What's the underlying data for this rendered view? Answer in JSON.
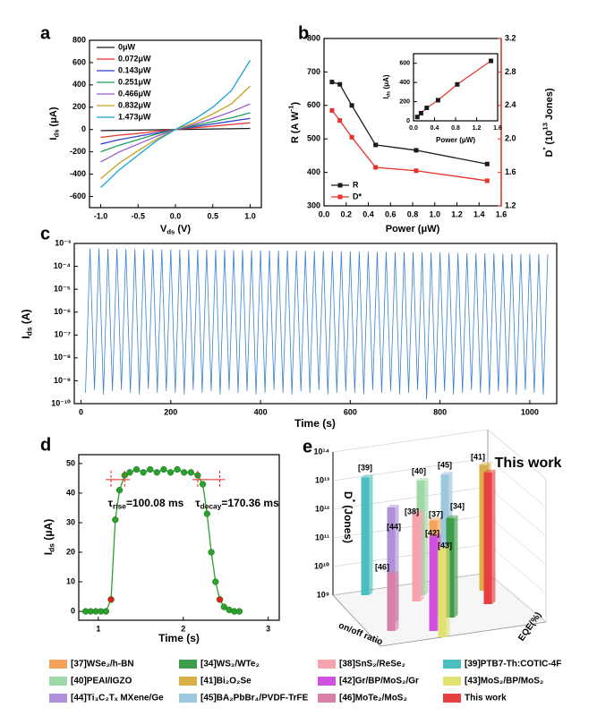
{
  "chart_data": [
    {
      "type": "line",
      "panel_label": "a",
      "legend": "upper left",
      "x_label": [
        {
          "t": "V"
        },
        {
          "sub": "ds"
        },
        {
          "t": " (V)"
        }
      ],
      "y_label": [
        {
          "t": "I"
        },
        {
          "sub": "ds"
        },
        {
          "t": " (μA)"
        }
      ],
      "x": [
        -1,
        -0.75,
        -0.5,
        -0.25,
        0,
        0.25,
        0.5,
        0.75,
        1
      ],
      "xlim": [
        -1.15,
        1.15
      ],
      "xticks": [
        {
          "value": -1,
          "label": "-1.0"
        },
        -0.5,
        {
          "value": 0,
          "label": "0.0"
        },
        0.5,
        {
          "value": 1,
          "label": "1.0"
        }
      ],
      "ylim": [
        -700,
        800
      ],
      "yticks": [
        -600,
        -400,
        -200,
        0,
        200,
        400,
        600,
        800
      ],
      "series": [
        {
          "name": "0μW",
          "color": "#1a1a1a",
          "values": [
            -10,
            -7,
            -5,
            -2,
            0,
            2,
            5,
            7,
            10
          ]
        },
        {
          "name": "0.072μW",
          "color": "#e8312a",
          "values": [
            -70,
            -50,
            -35,
            -15,
            0,
            15,
            30,
            45,
            60
          ]
        },
        {
          "name": "0.143μW",
          "color": "#2f3fd0",
          "values": [
            -130,
            -90,
            -60,
            -30,
            0,
            25,
            50,
            75,
            100
          ]
        },
        {
          "name": "0.251μW",
          "color": "#1f9f5a",
          "values": [
            -200,
            -140,
            -90,
            -40,
            0,
            35,
            70,
            105,
            150
          ]
        },
        {
          "name": "0.466μW",
          "color": "#9b59d0",
          "values": [
            -290,
            -200,
            -130,
            -60,
            0,
            45,
            100,
            160,
            230
          ]
        },
        {
          "name": "0.832μW",
          "color": "#c8a020",
          "values": [
            -440,
            -300,
            -190,
            -85,
            0,
            60,
            140,
            230,
            390
          ]
        },
        {
          "name": "1.473μW",
          "color": "#17a2d8",
          "values": [
            -520,
            -360,
            -230,
            -100,
            0,
            90,
            200,
            350,
            620
          ]
        }
      ]
    },
    {
      "type": "line",
      "panel_label": "b",
      "legend": "lower left",
      "marker": "square",
      "x_label": [
        {
          "t": "Power (μW)"
        }
      ],
      "y_label": [
        {
          "t": "R"
        },
        {
          "t": " (A W"
        },
        {
          "sup": "-1"
        },
        {
          "t": ")"
        }
      ],
      "y2_label": [
        {
          "t": "D"
        },
        {
          "sup": "*"
        },
        {
          "t": " (10"
        },
        {
          "sup": "13"
        },
        {
          "t": " Jones)"
        }
      ],
      "x": [
        0.072,
        0.143,
        0.251,
        0.466,
        0.832,
        1.473
      ],
      "xlim": [
        0,
        1.6
      ],
      "xticks": [
        {
          "value": 0,
          "label": "0.0"
        },
        0.2,
        0.4,
        0.6,
        0.8,
        {
          "value": 1,
          "label": "1.0"
        },
        1.2,
        1.4,
        1.6
      ],
      "ylim": [
        300,
        800
      ],
      "yticks": [
        300,
        400,
        500,
        600,
        700,
        800
      ],
      "y2lim": [
        1.2,
        3.2
      ],
      "y2ticks": [
        1.2,
        1.6,
        {
          "value": 2,
          "label": "2.0"
        },
        2.4,
        2.8,
        3.2
      ],
      "series": [
        {
          "name": "R",
          "color": "#1a1a1a",
          "values": [
            670,
            663,
            600,
            482,
            466,
            425
          ]
        },
        {
          "name": "D*",
          "color": "#e8312a",
          "axis": "y2",
          "values": [
            2.34,
            2.22,
            2.02,
            1.66,
            1.62,
            1.5
          ]
        }
      ]
    },
    {
      "type": "line",
      "marker": "square",
      "x_label": [
        {
          "t": "Power (μW)"
        }
      ],
      "y_label": [
        {
          "t": "I"
        },
        {
          "sub": "ds"
        },
        {
          "t": " (μA)"
        }
      ],
      "x": [
        0.072,
        0.143,
        0.251,
        0.466,
        0.832,
        1.473
      ],
      "xlim": [
        0,
        1.6
      ],
      "xticks": [
        {
          "value": 0,
          "label": "0.0"
        },
        0.4,
        0.8,
        1.2,
        1.6
      ],
      "ylim": [
        0,
        700
      ],
      "yticks": [
        0,
        200,
        400,
        600
      ],
      "series": [
        {
          "color": "#e8312a",
          "marker_color": "#1a1a1a",
          "values": [
            40,
            80,
            135,
            215,
            380,
            625
          ]
        }
      ]
    },
    {
      "type": "line",
      "panel_label": "c",
      "y_scale": "log",
      "x_label": [
        {
          "t": "Time (s)"
        }
      ],
      "y_label": [
        {
          "t": "I"
        },
        {
          "sub": "ds"
        },
        {
          "t": " (A)"
        }
      ],
      "xlim": [
        -15,
        1060
      ],
      "xticks": [
        0,
        200,
        400,
        600,
        800,
        1000
      ],
      "ylim": [
        1e-10,
        0.001
      ],
      "yticks": [
        {
          "value": 1e-10,
          "label": "10⁻¹⁰"
        },
        {
          "value": 1e-09,
          "label": "10⁻⁹"
        },
        {
          "value": 1e-08,
          "label": "10⁻⁸"
        },
        {
          "value": 1e-07,
          "label": "10⁻⁷"
        },
        {
          "value": 1e-06,
          "label": "10⁻⁶"
        },
        {
          "value": 1e-05,
          "label": "10⁻⁵"
        },
        {
          "value": 0.0001,
          "label": "10⁻⁴"
        },
        {
          "value": 0.001,
          "label": "10⁻³"
        }
      ],
      "x": [
        10,
        20,
        30,
        40,
        50,
        60,
        70,
        80,
        90,
        100,
        110,
        120,
        130,
        140,
        150,
        160,
        170,
        180,
        190,
        200,
        210,
        220,
        230,
        240,
        250,
        260,
        270,
        280,
        290,
        300,
        310,
        320,
        330,
        340,
        350,
        360,
        370,
        380,
        390,
        400,
        410,
        420,
        430,
        440,
        450,
        460,
        470,
        480,
        490,
        500,
        510,
        520,
        530,
        540,
        550,
        560,
        570,
        580,
        590,
        600,
        610,
        620,
        630,
        640,
        650,
        660,
        670,
        680,
        690,
        700,
        710,
        720,
        730,
        740,
        750,
        760,
        770,
        780,
        790,
        800,
        810,
        820,
        830,
        840,
        850,
        860,
        870,
        880,
        890,
        900,
        910,
        920,
        930,
        940,
        950,
        960,
        970,
        980,
        990,
        1000,
        1010,
        1020,
        1030,
        1040
      ],
      "series": [
        {
          "color": "#3a7fd0",
          "values": [
            3e-10,
            0.0006,
            4e-10,
            0.0006,
            2.5e-10,
            0.00058,
            3.5e-10,
            0.00058,
            4e-10,
            0.00057,
            3e-10,
            0.00057,
            2.5e-10,
            0.00056,
            4.5e-10,
            0.00056,
            3e-10,
            0.00055,
            3.5e-10,
            0.00055,
            3e-10,
            0.00054,
            2.5e-10,
            0.00054,
            4e-10,
            0.00053,
            3e-10,
            0.00053,
            3.5e-10,
            0.00052,
            2.5e-10,
            0.00052,
            4e-10,
            0.00051,
            3e-10,
            0.00051,
            3.5e-10,
            0.0005,
            2.5e-10,
            0.0005,
            3e-10,
            0.00049,
            4e-10,
            0.00049,
            3e-10,
            0.00048,
            2.5e-10,
            0.00048,
            3.5e-10,
            0.00047,
            3e-10,
            0.00047,
            4e-10,
            0.00046,
            2.5e-10,
            0.00046,
            3e-10,
            0.00045,
            3.5e-10,
            0.00045,
            3e-10,
            0.00044,
            2.5e-10,
            0.00044,
            4e-10,
            0.00043,
            3e-10,
            0.00043,
            3.5e-10,
            0.00042,
            2.5e-10,
            0.00042,
            3e-10,
            0.00041,
            4e-10,
            0.00041,
            1.5e-10,
            0.0004,
            3e-10,
            0.0004,
            3.5e-10,
            0.00039,
            2.5e-10,
            0.00039,
            3e-10,
            0.00038,
            4e-10,
            0.00038,
            3e-10,
            0.00037,
            2.5e-10,
            0.00037,
            3.5e-10,
            0.00036,
            3e-10,
            0.00036,
            2.5e-10,
            0.00035,
            4e-10,
            0.00035,
            3e-10,
            0.00035,
            2.5e-10,
            0.00034
          ]
        }
      ]
    },
    {
      "type": "line",
      "panel_label": "d",
      "marker": "circle",
      "x_label": [
        {
          "t": "Time (s)"
        }
      ],
      "y_label": [
        {
          "t": "I"
        },
        {
          "sub": "ds"
        },
        {
          "t": " (μA)"
        }
      ],
      "annotations": [
        [
          {
            "t": "τ"
          },
          {
            "sub": "rise"
          },
          {
            "t": "=100.08 ms"
          }
        ],
        [
          {
            "t": "τ"
          },
          {
            "sub": "decay"
          },
          {
            "t": "=170.36 ms"
          }
        ]
      ],
      "annotation_color": "#e0201b",
      "xlim": [
        0.77,
        3.13
      ],
      "xticks": [
        1,
        2,
        3
      ],
      "ylim": [
        -3,
        53
      ],
      "yticks": [
        0,
        10,
        20,
        30,
        40,
        50
      ],
      "x": [
        0.85,
        0.91,
        0.97,
        1.03,
        1.09,
        1.15,
        1.2,
        1.25,
        1.31,
        1.37,
        1.45,
        1.53,
        1.61,
        1.69,
        1.77,
        1.85,
        1.93,
        2.01,
        2.09,
        2.17,
        2.23,
        2.28,
        2.33,
        2.38,
        2.43,
        2.48,
        2.54,
        2.6,
        2.66
      ],
      "series": [
        {
          "color": "#2ca02c",
          "values": [
            0,
            0,
            0,
            0,
            0,
            4,
            31,
            41,
            46,
            47,
            48,
            47,
            48,
            47,
            48,
            47,
            48,
            47,
            47,
            46,
            43,
            33,
            20,
            10,
            4,
            1.5,
            0.5,
            0,
            0
          ]
        },
        {
          "color": "#e0201b",
          "line": false,
          "values": [
            null,
            null,
            null,
            null,
            null,
            4,
            null,
            null,
            null,
            null,
            null,
            null,
            null,
            null,
            null,
            null,
            null,
            null,
            null,
            null,
            null,
            null,
            null,
            null,
            4,
            null,
            null,
            null,
            null
          ]
        }
      ]
    },
    {
      "type": "bar3d",
      "panel_label": "e",
      "y_scale": "log",
      "z_label": [
        {
          "t": "D"
        },
        {
          "sup": "*"
        },
        {
          "t": " (Jones)"
        }
      ],
      "x_label": [
        {
          "t": "on/off ratio"
        }
      ],
      "y_label": [
        {
          "t": "EQE(%)"
        }
      ],
      "ylim": [
        1000000000.0,
        100000000000000.0
      ],
      "yticks": [
        {
          "value": 1000000000.0,
          "label": "10⁹"
        },
        {
          "value": 10000000000.0,
          "label": "10¹⁰"
        },
        {
          "value": 100000000000.0,
          "label": "10¹¹"
        },
        {
          "value": 1000000000000.0,
          "label": "10¹²"
        },
        {
          "value": 10000000000000.0,
          "label": "10¹³"
        },
        {
          "value": 100000000000000.0,
          "label": "10¹⁴"
        }
      ],
      "series": [
        {
          "name": "[37]WSe₂/h-BN",
          "label": "[37]",
          "color": "#f4a25a",
          "value": 2500000000000.0
        },
        {
          "name": "[34]WS₂/WTe₂",
          "label": "[34]",
          "color": "#3f9c4a",
          "value": 3000000000000.0
        },
        {
          "name": "[38]SnS₂/ReSe₂",
          "label": "[38]",
          "color": "#f6a5b0",
          "value": 1300000000000.0
        },
        {
          "name": "[39]PTB7-Th:COTIC-4F",
          "label": "[39]",
          "color": "#4bbfc0",
          "value": 13000000000000.0
        },
        {
          "name": "[40]PEAI/IGZO",
          "label": "[40]",
          "color": "#9ed9a8",
          "value": 10000000000000.0
        },
        {
          "name": "[41]Bi₂O₂Se",
          "label": "[41]",
          "color": "#d8b04a",
          "value": 25000000000000.0
        },
        {
          "name": "[42]Gr/BP/MoS₂/Gr",
          "label": "[42]",
          "color": "#d050e0",
          "value": 2000000000000.0
        },
        {
          "name": "[43]MoS₂/BP/MoS₂",
          "label": "[43]",
          "color": "#e2e070",
          "value": 1300000000000.0
        },
        {
          "name": "[44]Ti₃C₂Tₓ MXene/Ge",
          "label": "[44]",
          "color": "#b090d8",
          "value": 10000000000000.0
        },
        {
          "name": "[45]BA₂PbBr₄/PVDF-TrFE",
          "label": "[45]",
          "color": "#9cc8e0",
          "value": 8000000000000.0
        },
        {
          "name": "[46]MoTe₂/MoS₂",
          "label": "[46]",
          "color": "#d880a8",
          "value": 100000000000.0
        },
        {
          "name": "This work",
          "label": "This work",
          "color": "#e84040",
          "value": 40000000000000.0
        }
      ]
    }
  ]
}
